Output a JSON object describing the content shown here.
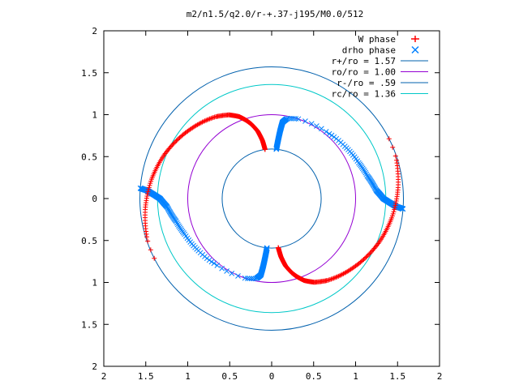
{
  "chart_data": {
    "type": "scatter",
    "title": "m2/n1.5/q2.0/r-+.37-j195/M0.0/512",
    "xlim": [
      -2,
      2
    ],
    "ylim": [
      -2,
      2
    ],
    "x_tick_values": [
      -2,
      -1.5,
      -1,
      -0.5,
      0,
      0.5,
      1,
      1.5,
      2
    ],
    "x_tick_labels": [
      "2",
      "1.5",
      "1",
      "0.5",
      "0",
      "0.5",
      "1",
      "1.5",
      "2"
    ],
    "y_tick_values": [
      2,
      1.5,
      1,
      0.5,
      0,
      -0.5,
      -1,
      -1.5,
      -2
    ],
    "y_tick_labels": [
      "2",
      "1.5",
      "1",
      "0.5",
      "0",
      "0.5",
      "1",
      "1.5",
      "2"
    ],
    "grid": false,
    "legend_position": "top-right",
    "colors": {
      "w_phase": "#ff0000",
      "drho_phase": "#0080ff",
      "r_plus": "#0060ad",
      "r_o": "#9400d3",
      "r_minus": "#0060ad",
      "r_c": "#00c8c8"
    },
    "legend": [
      {
        "key": "w",
        "label": "W phase",
        "marker": "plus",
        "color": "#ff0000"
      },
      {
        "key": "drho",
        "label": "drho phase",
        "marker": "x",
        "color": "#0080ff"
      },
      {
        "key": "rp",
        "label": "r+/ro = 1.57",
        "marker": "line",
        "color": "#0060ad"
      },
      {
        "key": "ro",
        "label": "ro/ro = 1.00",
        "marker": "line",
        "color": "#9400d3"
      },
      {
        "key": "rm",
        "label": "r-/ro = .59",
        "marker": "line",
        "color": "#0060ad"
      },
      {
        "key": "rc",
        "label": "rc/ro = 1.36",
        "marker": "line",
        "color": "#00c8c8"
      }
    ],
    "circles": [
      {
        "name": "r+/ro = 1.57",
        "radius": 1.57,
        "color": "#0060ad"
      },
      {
        "name": "ro/ro = 1.00",
        "radius": 1.0,
        "color": "#9400d3"
      },
      {
        "name": "r-/ro = .59",
        "radius": 0.59,
        "color": "#0060ad"
      },
      {
        "name": "rc/ro = 1.36",
        "radius": 1.36,
        "color": "#00c8c8"
      }
    ],
    "w_phase_curve_radius": [
      [
        0.085,
        0.59
      ],
      [
        0.1,
        0.7
      ],
      [
        0.13,
        0.82
      ],
      [
        0.17,
        0.92
      ],
      [
        0.2,
        0.98
      ],
      [
        0.24,
        1.05
      ],
      [
        0.3,
        1.12
      ],
      [
        0.38,
        1.18
      ],
      [
        0.45,
        1.22
      ],
      [
        0.6,
        1.3
      ],
      [
        0.75,
        1.38
      ],
      [
        0.9,
        1.45
      ],
      [
        1.05,
        1.51
      ],
      [
        1.2,
        1.56
      ],
      [
        1.3,
        1.57
      ]
    ],
    "drho_phase_curve_radius": [
      [
        0.06,
        0.59
      ],
      [
        0.07,
        0.7
      ],
      [
        0.08,
        0.82
      ],
      [
        0.09,
        0.92
      ],
      [
        0.12,
        0.97
      ],
      [
        0.2,
        1.0
      ],
      [
        0.3,
        1.01
      ],
      [
        0.45,
        1.03
      ],
      [
        0.6,
        1.07
      ],
      [
        0.75,
        1.12
      ],
      [
        0.85,
        1.17
      ],
      [
        0.95,
        1.25
      ],
      [
        1.0,
        1.33
      ],
      [
        1.02,
        1.4
      ],
      [
        1.04,
        1.48
      ],
      [
        1.05,
        1.57
      ]
    ]
  }
}
